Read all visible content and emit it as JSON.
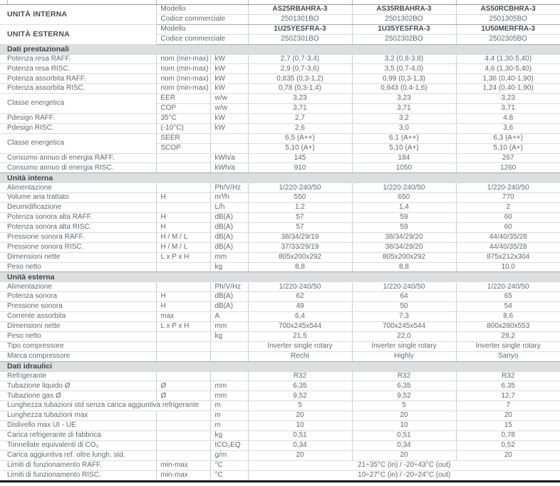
{
  "unit_blocks": [
    {
      "label": "UNITÀ INTERNA",
      "model_label": "Modello",
      "code_label": "Codice commerciale",
      "models": [
        "AS25RBAHRA-3",
        "AS35RBAHRA-3",
        "AS50RCBHRA-3"
      ],
      "codes": [
        "2501301BO",
        "2501302BO",
        "2501305BO"
      ]
    },
    {
      "label": "UNITÀ ESTERNA",
      "model_label": "Modello",
      "code_label": "Codice commerciale",
      "models": [
        "1U25YESFRA-3",
        "1U35YESFRA-3",
        "1U50MERFRA-3"
      ],
      "codes": [
        "2502301BO",
        "2502302BO",
        "2502305BO"
      ]
    }
  ],
  "sections": [
    {
      "title": "Dati prestazionali",
      "rows": [
        {
          "label": "Potenza resa RAFF.",
          "sub": "nom (min-max)",
          "unit": "kW",
          "values": [
            "2,7 (0,7-3,4)",
            "3,2 (0,8-3,8)",
            "4,4 (1,30-5,40)"
          ]
        },
        {
          "label": "Potenza resa RISC.",
          "sub": "nom (min-max)",
          "unit": "kW",
          "values": [
            "2,9 (0,7-3,6)",
            "3,5 (0,7-4,0)",
            "4,6 (1,30-5,40)"
          ]
        },
        {
          "label": "Potenza assorbita RAFF.",
          "sub": "nom (min-max)",
          "unit": "kW",
          "values": [
            "0,835 (0,3-1,2)",
            "0,99 (0,3-1,3)",
            "1,36 (0,40-1,90)"
          ]
        },
        {
          "label": "Potenza assorbita RISC.",
          "sub": "nom (min-max)",
          "unit": "kW",
          "values": [
            "0,78 (0,3-1,4)",
            "0,943 (0,4-1,6)",
            "1,24 (0,40-1,90)"
          ]
        },
        {
          "label": "Classe energetica",
          "label_rowspan": 2,
          "sub": "EER",
          "unit": "w/w",
          "values": [
            "3,23",
            "3,23",
            "3,23"
          ]
        },
        {
          "label": null,
          "sub": "COP",
          "unit": "w/w",
          "values": [
            "3,71",
            "3,71",
            "3,71"
          ]
        },
        {
          "label": "Pdesign RAFF.",
          "sub": "35°C",
          "unit": "kW",
          "values": [
            "2,7",
            "3,2",
            "4,8"
          ]
        },
        {
          "label": "Pdesign RISC.",
          "sub": "(-10°C)",
          "unit": "kW",
          "values": [
            "2,6",
            "3,0",
            "3,6"
          ]
        },
        {
          "label": "Classe energetica",
          "label_rowspan": 2,
          "sub": "SEER",
          "unit": "",
          "values": [
            "6,5 (A++)",
            "6,1 (A++)",
            "6,3 (A++)"
          ]
        },
        {
          "label": null,
          "sub": "SCOP",
          "unit": "",
          "values": [
            "5,10 (A+)",
            "5,10 (A+)",
            "5,10 (A+)"
          ]
        },
        {
          "label": "Consumo annuo di energia RAFF.",
          "sub": "",
          "unit": "kWh/a",
          "values": [
            "145",
            "184",
            "267"
          ]
        },
        {
          "label": "Consumo annuo di energia RISC.",
          "sub": "",
          "unit": "kWh/a",
          "values": [
            "910",
            "1050",
            "1260"
          ]
        }
      ]
    },
    {
      "title": "Unità interna",
      "rows": [
        {
          "label": "Alimentazione",
          "sub": "",
          "unit": "Ph/V/Hz",
          "values": [
            "1/220-240/50",
            "1/220-240/50",
            "1/220-240/50"
          ]
        },
        {
          "label": "Volume aria trattato",
          "sub": "H",
          "unit": "m³/h",
          "values": [
            "550",
            "650",
            "770"
          ]
        },
        {
          "label": "Deumidificazione",
          "sub": "",
          "unit": "L/h",
          "values": [
            "1,2",
            "1,4",
            "2"
          ]
        },
        {
          "label": "Potenza sonora alta RAFF.",
          "sub": "H",
          "unit": "dB(A)",
          "values": [
            "57",
            "59",
            "60"
          ]
        },
        {
          "label": "Potenza sonora alta RISC.",
          "sub": "H",
          "unit": "dB(A)",
          "values": [
            "57",
            "59",
            "60"
          ]
        },
        {
          "label": "Pressione sonora RAFF.",
          "sub": "H / M / L",
          "unit": "dB(A)",
          "values": [
            "38/34/29/19",
            "38/34/29/20",
            "44/40/35/28"
          ]
        },
        {
          "label": "Pressione sonora RISC.",
          "sub": "H / M / L",
          "unit": "dB(A)",
          "values": [
            "37/33/29/19",
            "38/34/29/20",
            "44/40/35/28"
          ]
        },
        {
          "label": "Dimensioni nette",
          "sub": "L x P x H",
          "unit": "mm",
          "values": [
            "805x200x292",
            "805x200x292",
            "875x212x304"
          ]
        },
        {
          "label": "Peso netto",
          "sub": "",
          "unit": "kg",
          "values": [
            "8,8",
            "8,8",
            "10,0"
          ]
        }
      ]
    },
    {
      "title": "Unità esterna",
      "rows": [
        {
          "label": "Alimentazione",
          "sub": "",
          "unit": "Ph/V/Hz",
          "values": [
            "1/220-240/50",
            "1/220-240/50",
            "1/220-240/50"
          ]
        },
        {
          "label": "Potenza sonora",
          "sub": "H",
          "unit": "dB(A)",
          "values": [
            "62",
            "64",
            "65"
          ]
        },
        {
          "label": "Pressione sonora",
          "sub": "H",
          "unit": "dB(A)",
          "values": [
            "49",
            "50",
            "54"
          ]
        },
        {
          "label": "Corrente assorbita",
          "sub": "max",
          "unit": "A",
          "values": [
            "6,4",
            "7,3",
            "8,6"
          ]
        },
        {
          "label": "Dimensioni nette",
          "sub": "L x P x H",
          "unit": "mm",
          "values": [
            "700x245x544",
            "700x245x544",
            "800x280x553"
          ]
        },
        {
          "label": "Peso netto",
          "sub": "",
          "unit": "kg",
          "values": [
            "21,5",
            "22,0",
            "29,2"
          ]
        },
        {
          "label": "Tipo compressore",
          "sub": "",
          "unit": "",
          "values": [
            "Inverter single rotary",
            "Inverter single rotary",
            "Inverter single rotary"
          ]
        },
        {
          "label": "Marca compressore",
          "sub": "",
          "unit": "",
          "values": [
            "Rechi",
            "Highly",
            "Sanyo"
          ]
        }
      ]
    },
    {
      "title": "Dati idraulici",
      "rows": [
        {
          "label": "Refrigerante",
          "sub": "",
          "unit": "",
          "values": [
            "R32",
            "R32",
            "R32"
          ]
        },
        {
          "label": "Tubazione liquido Ø",
          "sub": "Ø",
          "unit": "mm",
          "values": [
            "6,35",
            "6,35",
            "6,35"
          ]
        },
        {
          "label": "Tubazione gas Ø",
          "sub": "Ø",
          "unit": "mm",
          "values": [
            "9,52",
            "9,52",
            "12,7"
          ]
        },
        {
          "label": "Lunghezza tubazioni std senza carica aggiuntiva refrigerante",
          "label_colspan": 2,
          "sub": null,
          "unit": "m",
          "values": [
            "5",
            "5",
            "7"
          ]
        },
        {
          "label": "Lunghezza tubazioni max",
          "sub": "",
          "unit": "m",
          "values": [
            "20",
            "20",
            "20"
          ]
        },
        {
          "label": "Dislivello max UI - UE",
          "sub": "",
          "unit": "m",
          "values": [
            "10",
            "10",
            "15"
          ]
        },
        {
          "label": "Carica refrigerante di fabbrica",
          "sub": "",
          "unit": "kg",
          "values": [
            "0,51",
            "0,51",
            "0,78"
          ]
        },
        {
          "label": "Tonnellate equivalenti di CO₂",
          "sub": "",
          "unit": "tCO₂EQ",
          "values": [
            "0,34",
            "0,34",
            "0,52"
          ]
        },
        {
          "label": "Carica aggiuntiva ref. oltre lungh. std.",
          "sub": "",
          "unit": "g/m",
          "values": [
            "20",
            "20",
            "20"
          ]
        },
        {
          "label": "Limiti di funzionamento RAFF.",
          "sub": "min-max",
          "unit": "°C",
          "value_span": "21÷35°C (in) / -20÷43°C (out)"
        },
        {
          "label": "Limiti di funzionamento RISC.",
          "sub": "min-max",
          "unit": "°C",
          "value_span": "10÷27°C (in) / -20÷24°C (out)"
        }
      ]
    }
  ]
}
